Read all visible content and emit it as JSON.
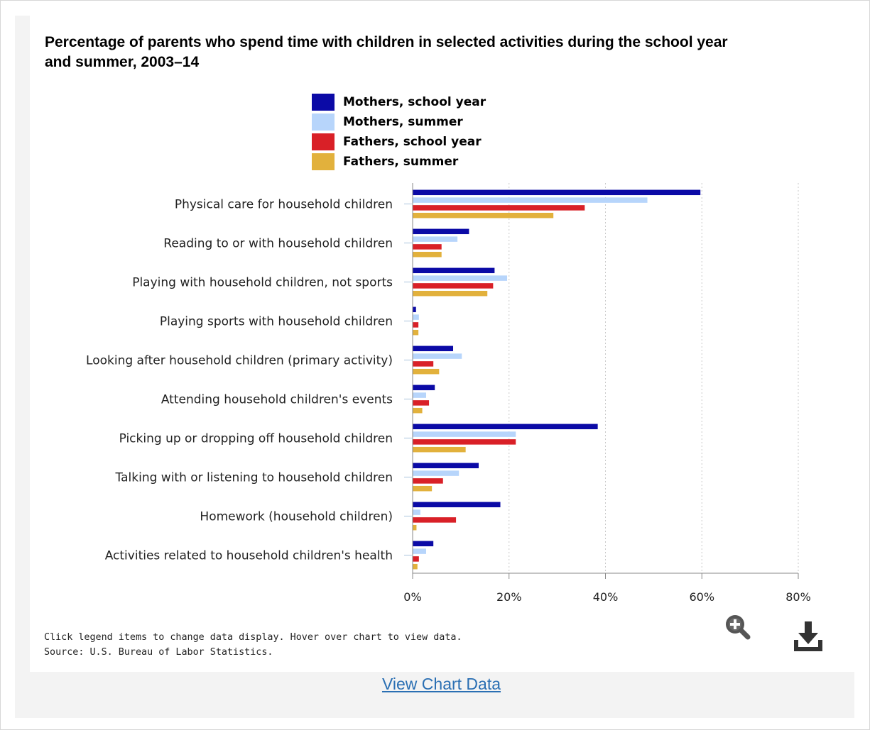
{
  "title": "Percentage of parents who spend time with children in selected activities during the school year and summer, 2003–14",
  "legend": [
    {
      "label": "Mothers, school year",
      "color": "#0b0aa6"
    },
    {
      "label": "Mothers, summer",
      "color": "#b7d5fb"
    },
    {
      "label": "Fathers, school year",
      "color": "#d92027"
    },
    {
      "label": "Fathers, summer",
      "color": "#e2b13c"
    }
  ],
  "footnote": {
    "line1": "Click legend items to change data display. Hover over chart to view data.",
    "line2": "Source: U.S. Bureau of Labor Statistics."
  },
  "buttons": {
    "zoom_icon": "zoom-in-icon",
    "download_icon": "download-icon"
  },
  "view_data_link": "View Chart Data",
  "chart_data": {
    "type": "bar",
    "orientation": "horizontal",
    "categories": [
      "Physical care for household children",
      "Reading to or with household children",
      "Playing with household children, not sports",
      "Playing sports with household children",
      "Looking after household children (primary activity)",
      "Attending household children's events",
      "Picking up or dropping off household children",
      "Talking with or listening to household children",
      "Homework (household children)",
      "Activities related to household children's health"
    ],
    "series": [
      {
        "name": "Mothers, school year",
        "values": [
          59.7,
          11.7,
          17.0,
          0.7,
          8.4,
          4.6,
          38.4,
          13.7,
          18.2,
          4.3
        ]
      },
      {
        "name": "Mothers, summer",
        "values": [
          48.7,
          9.3,
          19.6,
          1.3,
          10.2,
          2.8,
          21.4,
          9.6,
          1.6,
          2.8
        ]
      },
      {
        "name": "Fathers, school year",
        "values": [
          35.7,
          6.0,
          16.7,
          1.2,
          4.3,
          3.4,
          21.4,
          6.3,
          9.0,
          1.3
        ]
      },
      {
        "name": "Fathers, summer",
        "values": [
          29.2,
          6.0,
          15.5,
          1.2,
          5.5,
          2.0,
          11.0,
          4.0,
          0.8,
          1.0
        ]
      }
    ],
    "xlim": [
      0,
      80
    ],
    "xticks": [
      "0%",
      "20%",
      "40%",
      "60%",
      "80%"
    ],
    "xtick_values": [
      0,
      20,
      40,
      60,
      80
    ],
    "grid": "vertical dotted",
    "legend_position": "top"
  }
}
